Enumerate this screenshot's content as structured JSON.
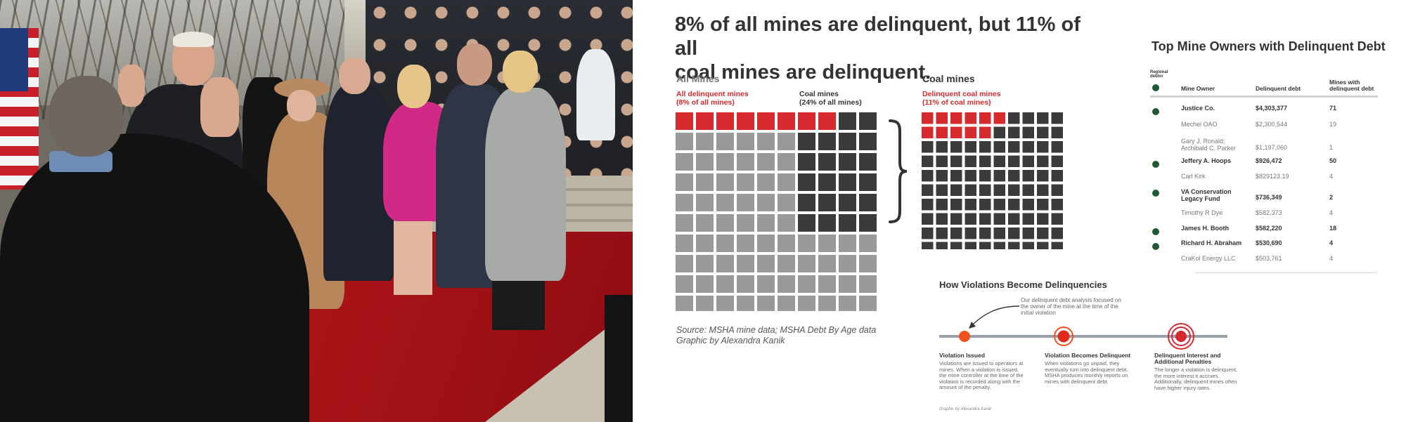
{
  "infographic": {
    "title_line1": "8% of all mines are delinquent, but 11% of all",
    "title_line2": "coal mines are delinquent.",
    "all_mines": {
      "heading": "All Mines",
      "legend_red_1": "All delinquent mines",
      "legend_red_2": "(8% of all mines)",
      "legend_dark_1": "Coal mines",
      "legend_dark_2": "(24% of all mines)"
    },
    "coal_mines": {
      "heading": "Coal mines",
      "legend_red_1": "Delinquent coal mines",
      "legend_red_2": "(11% of coal mines)"
    },
    "source_line1": "Source: MSHA mine data; MSHA Debt By Age data",
    "source_line2": "Graphic by Alexandra Kanik",
    "colors": {
      "red": "#d62a2e",
      "dark": "#3b3b3b",
      "grey": "#999999",
      "green": "#1e5b34",
      "orange": "#f0531c"
    }
  },
  "chart_data": [
    {
      "type": "waffle",
      "title": "All Mines",
      "grid": {
        "columns": 10,
        "rows": 10
      },
      "series": [
        {
          "name": "All delinquent mines (8% of all mines)",
          "percent": 8,
          "color": "#d62a2e"
        },
        {
          "name": "Coal mines (24% of all mines)",
          "percent": 24,
          "color": "#3b3b3b"
        }
      ],
      "other_color": "#999999"
    },
    {
      "type": "waffle",
      "title": "Coal mines",
      "grid": {
        "columns": 10,
        "rows": 10
      },
      "series": [
        {
          "name": "Delinquent coal mines (11% of coal mines)",
          "percent": 11,
          "color": "#d62a2e"
        }
      ],
      "other_color": "#3b3b3b"
    },
    {
      "type": "table",
      "title": "Top Mine Owners with Delinquent Debt",
      "columns": [
        "Regional debtor",
        "Mine Owner",
        "Delinquent debt",
        "Mines with delinquent debt"
      ],
      "column_header_lines": {
        "regional_1": "Regional",
        "regional_2": "debtor",
        "mines_1": "Mines with",
        "mines_2": "delinquent debt"
      },
      "rows": [
        {
          "regional": true,
          "owner": "Justice Co.",
          "debt": "$4,303,377",
          "mines": "71"
        },
        {
          "regional": false,
          "owner": "Mechel OAO",
          "debt": "$2,300,544",
          "mines": "19"
        },
        {
          "regional": false,
          "owner": "Gary J. Ronald; Archibald C. Parker",
          "debt": "$1,197,060",
          "mines": "1"
        },
        {
          "regional": true,
          "owner": "Jeffery A. Hoops",
          "debt": "$926,472",
          "mines": "50"
        },
        {
          "regional": false,
          "owner": "Carl Kirk",
          "debt": "$829123.19",
          "mines": "4"
        },
        {
          "regional": true,
          "owner": "VA Conservation Legacy Fund",
          "debt": "$736,349",
          "mines": "2"
        },
        {
          "regional": false,
          "owner": "Timothy R Dye",
          "debt": "$582,373",
          "mines": "4"
        },
        {
          "regional": true,
          "owner": "James H. Booth",
          "debt": "$582,220",
          "mines": "18"
        },
        {
          "regional": true,
          "owner": "Richard H. Abraham",
          "debt": "$530,690",
          "mines": "4"
        },
        {
          "regional": false,
          "owner": "CraKol Energy LLC",
          "debt": "$503,761",
          "mines": "4"
        }
      ]
    }
  ],
  "timeline": {
    "title": "How Violations Become Delinquencies",
    "note": "Our delinquent debt analysis focused on the owner of the mine at the time of the initial violation",
    "steps": [
      {
        "heading": "Violation Issued",
        "body": "Violations are issued to operators at mines. When a violation is issued, the mine controller at the time of the violation is recorded along with the amount of the penalty."
      },
      {
        "heading": "Violation Becomes Delinquent",
        "body": "When violations go unpaid, they eventually turn into delinquent debt. MSHA produces monthly reports on mines with delinquent debt."
      },
      {
        "heading": "Delinquent Interest and Additional Penalties",
        "body": "The longer a violation is delinquent, the more interest it accrues. Additionally, delinquent mines often have higher injury rates."
      }
    ],
    "credit": "Graphic by Alexandra Kanik"
  }
}
